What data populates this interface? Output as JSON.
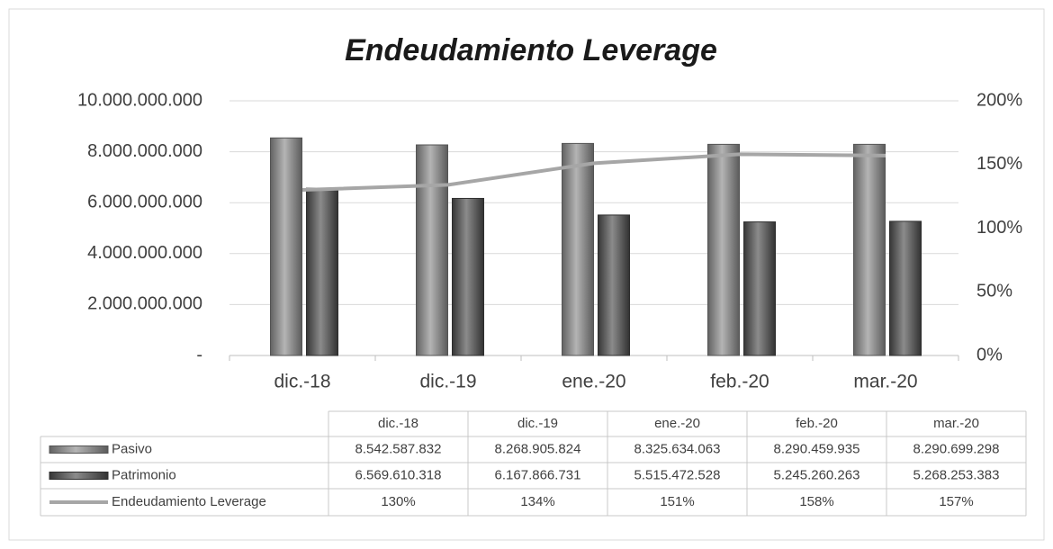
{
  "chart_data": {
    "type": "bar",
    "title": "Endeudamiento Leverage",
    "categories": [
      "dic.-18",
      "dic.-19",
      "ene.-20",
      "feb.-20",
      "mar.-20"
    ],
    "series": [
      {
        "name": "Pasivo",
        "color": "#8c8c8c",
        "type": "bar",
        "values": [
          8542587832,
          8268905824,
          8325634063,
          8290459935,
          8290699298
        ],
        "value_labels": [
          "8.542.587.832",
          "8.268.905.824",
          "8.325.634.063",
          "8.290.459.935",
          "8.290.699.298"
        ]
      },
      {
        "name": "Patrimonio",
        "color": "#4d4d4d",
        "type": "bar",
        "values": [
          6569610318,
          6167866731,
          5515472528,
          5245260263,
          5268253383
        ],
        "value_labels": [
          "6.569.610.318",
          "6.167.866.731",
          "5.515.472.528",
          "5.245.260.263",
          "5.268.253.383"
        ]
      },
      {
        "name": "Endeudamiento Leverage",
        "color": "#a6a6a6",
        "type": "line",
        "axis": "y2",
        "values": [
          130,
          134,
          151,
          158,
          157
        ],
        "value_labels": [
          "130%",
          "134%",
          "151%",
          "158%",
          "157%"
        ]
      }
    ],
    "ylim": [
      0,
      10000000000
    ],
    "yticks": [
      {
        "value": 0,
        "label": "-"
      },
      {
        "value": 2000000000,
        "label": "2.000.000.000"
      },
      {
        "value": 4000000000,
        "label": "4.000.000.000"
      },
      {
        "value": 6000000000,
        "label": "6.000.000.000"
      },
      {
        "value": 8000000000,
        "label": "8.000.000.000"
      },
      {
        "value": 10000000000,
        "label": "10.000.000.000"
      }
    ],
    "y2lim": [
      0,
      200
    ],
    "y2ticks": [
      {
        "value": 0,
        "label": "0%"
      },
      {
        "value": 50,
        "label": "50%"
      },
      {
        "value": 100,
        "label": "100%"
      },
      {
        "value": 150,
        "label": "150%"
      },
      {
        "value": 200,
        "label": "200%"
      }
    ],
    "grid": true
  }
}
